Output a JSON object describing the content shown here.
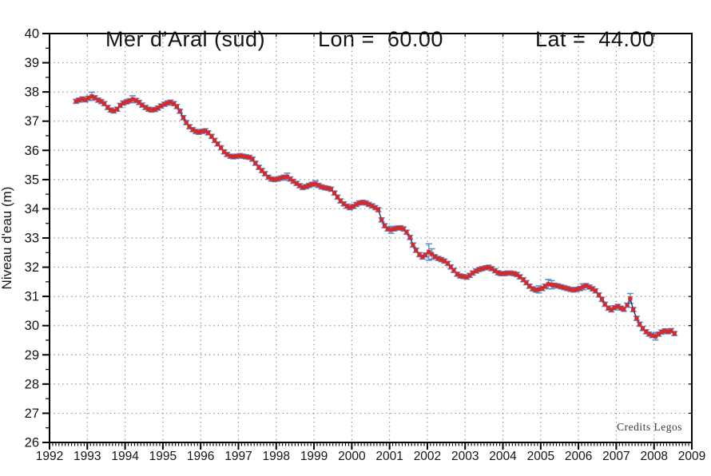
{
  "header": {
    "title": "Mer d’Aral (sud)",
    "lon_label": "Lon =",
    "lon_value": "60.00",
    "lat_label": "Lat =",
    "lat_value": "44.00"
  },
  "credits": "Credits Legos",
  "colors": {
    "marker": "#d42a2a",
    "line": "#223377",
    "errorbar": "#5b8fd4",
    "grid": "#909090",
    "axis": "#000000",
    "text": "#141414"
  },
  "chart_data": {
    "type": "line",
    "title": "Mer d’Aral (sud)  Lon = 60.00  Lat = 44.00",
    "xlabel": "",
    "ylabel": "Niveau d'eau  (m)",
    "xlim": [
      1992,
      2009
    ],
    "ylim": [
      26,
      40
    ],
    "x_ticks": [
      1992,
      1993,
      1994,
      1995,
      1996,
      1997,
      1998,
      1999,
      2000,
      2001,
      2002,
      2003,
      2004,
      2005,
      2006,
      2007,
      2008,
      2009
    ],
    "y_ticks": [
      26,
      27,
      28,
      29,
      30,
      31,
      32,
      33,
      34,
      35,
      36,
      37,
      38,
      39,
      40
    ],
    "x_minor_divisions_per_year": 12,
    "y_minor_step": 0.5,
    "grid": "dotted",
    "legend_position": "none",
    "default_error": 0.07,
    "series": [
      {
        "name": "niveau-eau-mer-aral-sud",
        "points": [
          [
            1992.7,
            37.68
          ],
          [
            1992.78,
            37.72
          ],
          [
            1992.87,
            37.76
          ],
          [
            1992.95,
            37.73
          ],
          [
            1993.03,
            37.79
          ],
          [
            1993.12,
            37.85,
            0.14
          ],
          [
            1993.2,
            37.8
          ],
          [
            1993.29,
            37.72
          ],
          [
            1993.37,
            37.67
          ],
          [
            1993.45,
            37.6
          ],
          [
            1993.54,
            37.47
          ],
          [
            1993.62,
            37.38
          ],
          [
            1993.7,
            37.35
          ],
          [
            1993.79,
            37.41
          ],
          [
            1993.87,
            37.54
          ],
          [
            1993.95,
            37.62
          ],
          [
            1994.04,
            37.66
          ],
          [
            1994.12,
            37.7
          ],
          [
            1994.2,
            37.75,
            0.12
          ],
          [
            1994.29,
            37.71
          ],
          [
            1994.37,
            37.64
          ],
          [
            1994.45,
            37.55
          ],
          [
            1994.54,
            37.47
          ],
          [
            1994.62,
            37.41
          ],
          [
            1994.7,
            37.38
          ],
          [
            1994.79,
            37.4
          ],
          [
            1994.87,
            37.45
          ],
          [
            1994.95,
            37.52
          ],
          [
            1995.04,
            37.58
          ],
          [
            1995.12,
            37.62
          ],
          [
            1995.2,
            37.65
          ],
          [
            1995.29,
            37.6
          ],
          [
            1995.37,
            37.5
          ],
          [
            1995.45,
            37.34
          ],
          [
            1995.54,
            37.12
          ],
          [
            1995.62,
            36.95
          ],
          [
            1995.7,
            36.81
          ],
          [
            1995.79,
            36.71
          ],
          [
            1995.87,
            36.65
          ],
          [
            1995.95,
            36.62
          ],
          [
            1996.04,
            36.65
          ],
          [
            1996.12,
            36.67
          ],
          [
            1996.2,
            36.6
          ],
          [
            1996.29,
            36.48
          ],
          [
            1996.37,
            36.34
          ],
          [
            1996.45,
            36.22
          ],
          [
            1996.54,
            36.09
          ],
          [
            1996.62,
            35.95
          ],
          [
            1996.7,
            35.86
          ],
          [
            1996.79,
            35.8
          ],
          [
            1996.87,
            35.78
          ],
          [
            1996.95,
            35.8
          ],
          [
            1997.04,
            35.82
          ],
          [
            1997.12,
            35.8
          ],
          [
            1997.2,
            35.78
          ],
          [
            1997.29,
            35.76
          ],
          [
            1997.37,
            35.7
          ],
          [
            1997.45,
            35.56
          ],
          [
            1997.54,
            35.42
          ],
          [
            1997.62,
            35.31
          ],
          [
            1997.7,
            35.2
          ],
          [
            1997.79,
            35.08
          ],
          [
            1997.87,
            35.02
          ],
          [
            1997.95,
            35.0
          ],
          [
            1998.04,
            35.02
          ],
          [
            1998.12,
            35.05
          ],
          [
            1998.2,
            35.08
          ],
          [
            1998.29,
            35.1,
            0.12
          ],
          [
            1998.37,
            35.02
          ],
          [
            1998.45,
            34.94
          ],
          [
            1998.54,
            34.87
          ],
          [
            1998.62,
            34.79
          ],
          [
            1998.7,
            34.73
          ],
          [
            1998.79,
            34.76
          ],
          [
            1998.87,
            34.8
          ],
          [
            1998.95,
            34.84
          ],
          [
            1999.04,
            34.86,
            0.1
          ],
          [
            1999.12,
            34.8
          ],
          [
            1999.2,
            34.75
          ],
          [
            1999.29,
            34.72
          ],
          [
            1999.37,
            34.7
          ],
          [
            1999.45,
            34.67
          ],
          [
            1999.54,
            34.54
          ],
          [
            1999.62,
            34.4
          ],
          [
            1999.7,
            34.27
          ],
          [
            1999.79,
            34.17
          ],
          [
            1999.87,
            34.09
          ],
          [
            1999.95,
            34.04
          ],
          [
            2000.04,
            34.08
          ],
          [
            2000.12,
            34.15
          ],
          [
            2000.2,
            34.2
          ],
          [
            2000.29,
            34.22
          ],
          [
            2000.37,
            34.2
          ],
          [
            2000.45,
            34.15
          ],
          [
            2000.54,
            34.1
          ],
          [
            2000.62,
            34.04
          ],
          [
            2000.7,
            33.97
          ],
          [
            2000.79,
            33.62
          ],
          [
            2000.87,
            33.42
          ],
          [
            2000.95,
            33.31
          ],
          [
            2001.04,
            33.28,
            0.12
          ],
          [
            2001.12,
            33.31
          ],
          [
            2001.2,
            33.34
          ],
          [
            2001.29,
            33.35
          ],
          [
            2001.37,
            33.31
          ],
          [
            2001.45,
            33.2
          ],
          [
            2001.54,
            33.02
          ],
          [
            2001.62,
            32.76
          ],
          [
            2001.7,
            32.58
          ],
          [
            2001.79,
            32.43
          ],
          [
            2001.87,
            32.35
          ],
          [
            2001.95,
            32.42
          ],
          [
            2002.04,
            32.52,
            0.28
          ],
          [
            2002.12,
            32.45,
            0.18
          ],
          [
            2002.2,
            32.36
          ],
          [
            2002.29,
            32.3
          ],
          [
            2002.37,
            32.26
          ],
          [
            2002.45,
            32.21
          ],
          [
            2002.54,
            32.13
          ],
          [
            2002.62,
            32.01
          ],
          [
            2002.7,
            31.89
          ],
          [
            2002.79,
            31.76
          ],
          [
            2002.87,
            31.7
          ],
          [
            2002.95,
            31.68
          ],
          [
            2003.04,
            31.66
          ],
          [
            2003.12,
            31.72
          ],
          [
            2003.2,
            31.8
          ],
          [
            2003.29,
            31.87
          ],
          [
            2003.37,
            31.92
          ],
          [
            2003.45,
            31.95
          ],
          [
            2003.54,
            31.98
          ],
          [
            2003.62,
            32.0
          ],
          [
            2003.7,
            31.95
          ],
          [
            2003.79,
            31.88
          ],
          [
            2003.87,
            31.81
          ],
          [
            2003.95,
            31.78
          ],
          [
            2004.04,
            31.78
          ],
          [
            2004.12,
            31.8
          ],
          [
            2004.2,
            31.8
          ],
          [
            2004.29,
            31.78
          ],
          [
            2004.37,
            31.75
          ],
          [
            2004.45,
            31.67
          ],
          [
            2004.54,
            31.57
          ],
          [
            2004.62,
            31.47
          ],
          [
            2004.7,
            31.35
          ],
          [
            2004.79,
            31.26
          ],
          [
            2004.87,
            31.22
          ],
          [
            2004.95,
            31.24,
            0.12
          ],
          [
            2005.04,
            31.27
          ],
          [
            2005.12,
            31.35
          ],
          [
            2005.2,
            31.42,
            0.16
          ],
          [
            2005.29,
            31.4,
            0.14
          ],
          [
            2005.37,
            31.38
          ],
          [
            2005.45,
            31.36
          ],
          [
            2005.54,
            31.33
          ],
          [
            2005.62,
            31.3
          ],
          [
            2005.7,
            31.27
          ],
          [
            2005.79,
            31.24
          ],
          [
            2005.87,
            31.22
          ],
          [
            2005.95,
            31.24
          ],
          [
            2006.04,
            31.27
          ],
          [
            2006.12,
            31.33,
            0.1
          ],
          [
            2006.2,
            31.37
          ],
          [
            2006.29,
            31.32
          ],
          [
            2006.37,
            31.26
          ],
          [
            2006.45,
            31.19
          ],
          [
            2006.54,
            31.05
          ],
          [
            2006.62,
            30.9
          ],
          [
            2006.7,
            30.73
          ],
          [
            2006.79,
            30.6
          ],
          [
            2006.87,
            30.54
          ],
          [
            2006.95,
            30.61
          ],
          [
            2007.04,
            30.66
          ],
          [
            2007.12,
            30.6
          ],
          [
            2007.2,
            30.56
          ],
          [
            2007.29,
            30.7
          ],
          [
            2007.37,
            30.93,
            0.17
          ],
          [
            2007.45,
            30.55
          ],
          [
            2007.54,
            30.25
          ],
          [
            2007.62,
            30.05
          ],
          [
            2007.7,
            29.9
          ],
          [
            2007.79,
            29.79
          ],
          [
            2007.87,
            29.71
          ],
          [
            2007.95,
            29.66
          ],
          [
            2008.04,
            29.63,
            0.12
          ],
          [
            2008.12,
            29.71
          ],
          [
            2008.2,
            29.78
          ],
          [
            2008.29,
            29.82
          ],
          [
            2008.37,
            29.79
          ],
          [
            2008.45,
            29.83
          ],
          [
            2008.54,
            29.73
          ]
        ]
      }
    ]
  }
}
